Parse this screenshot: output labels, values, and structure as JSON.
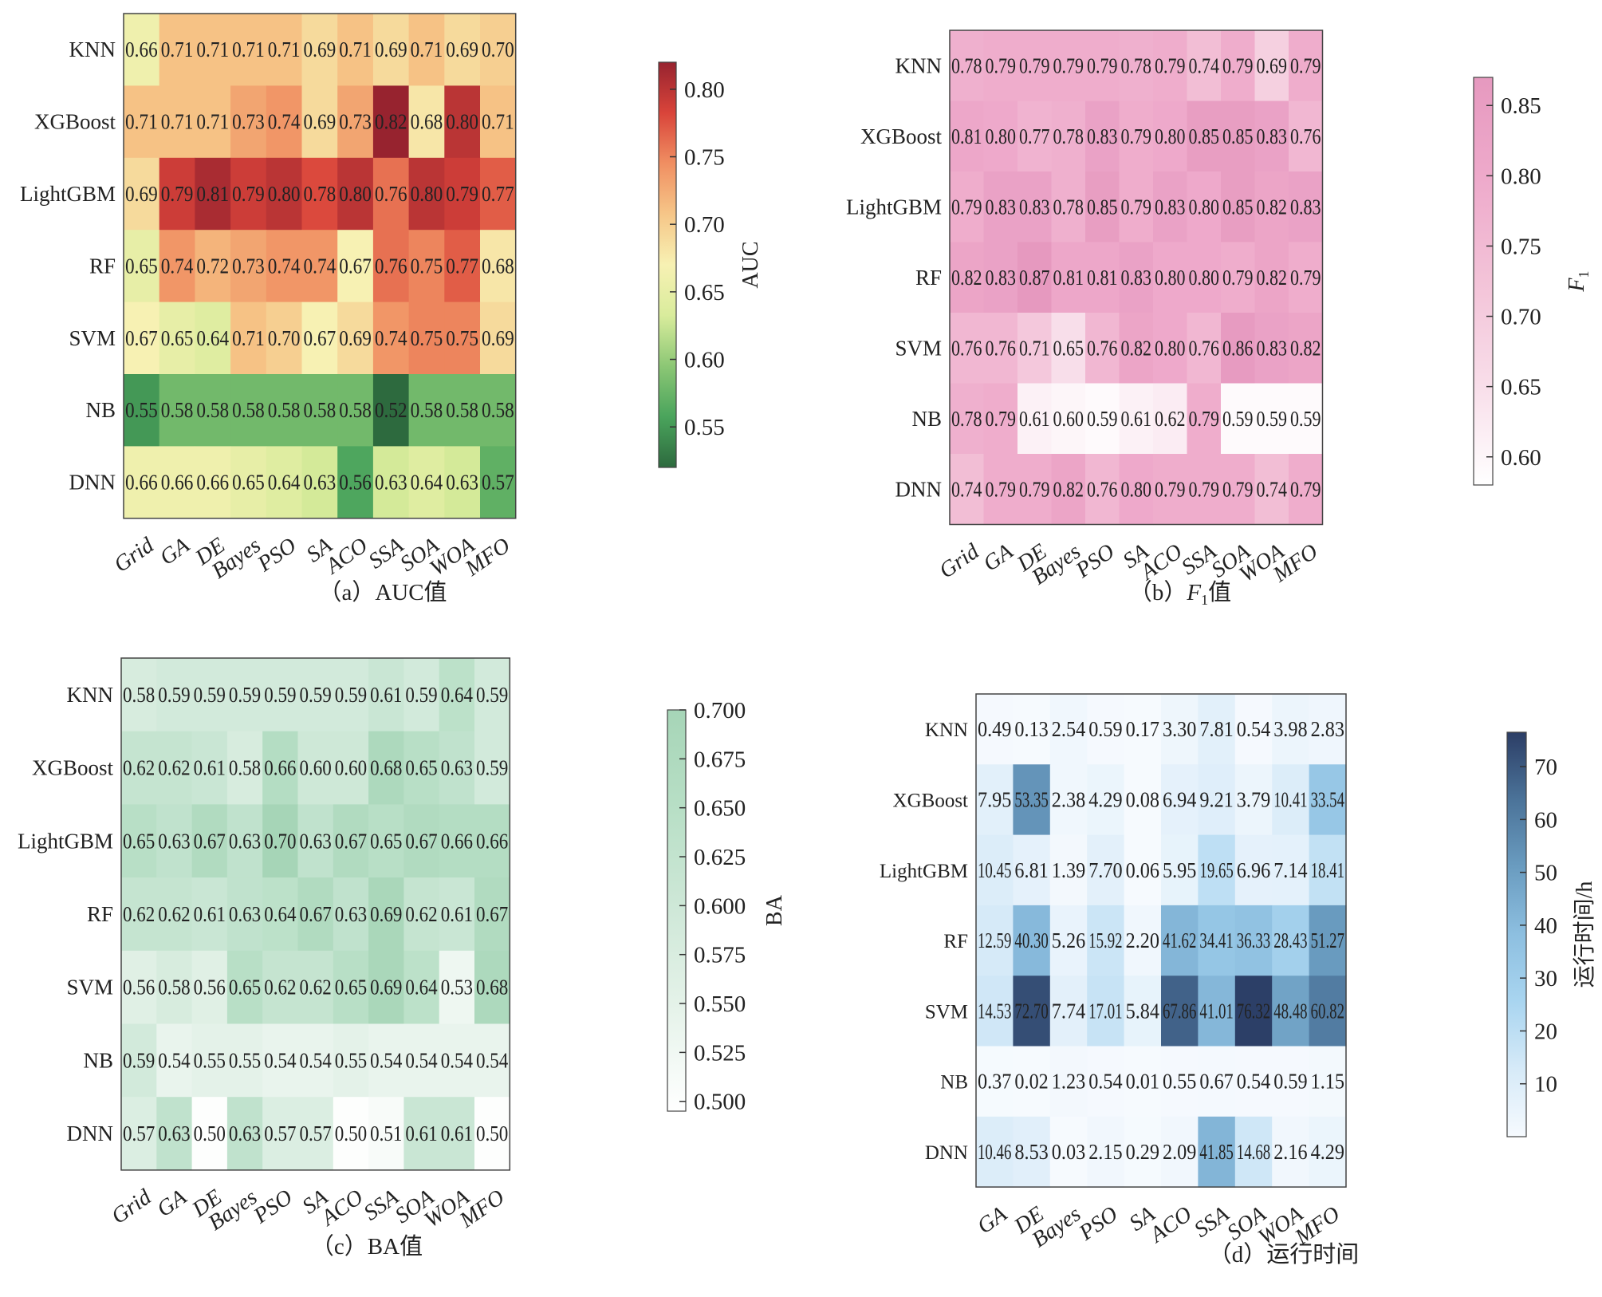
{
  "chart_data": [
    {
      "id": "a",
      "type": "heatmap",
      "caption_prefix": "（a）",
      "caption_main": "AUC值",
      "caption_sub": "",
      "caption_suffix": "",
      "colorbar_label": "AUC",
      "colorbar_label_sub": "",
      "colormap": [
        "#2d6a3e",
        "#4aa45c",
        "#8cc775",
        "#d9ec9c",
        "#f7f1b3",
        "#f6c688",
        "#f08f62",
        "#d9443a",
        "#97232f"
      ],
      "vmin": 0.52,
      "vmax": 0.82,
      "colorbar_ticks": [
        0.55,
        0.6,
        0.65,
        0.7,
        0.75,
        0.8
      ],
      "tick_format": 2,
      "rows": [
        "KNN",
        "XGBoost",
        "LightGBM",
        "RF",
        "SVM",
        "NB",
        "DNN"
      ],
      "columns": [
        "Grid",
        "GA",
        "DE",
        "Bayes",
        "PSO",
        "SA",
        "ACO",
        "SSA",
        "SOA",
        "WOA",
        "MFO"
      ],
      "values": [
        [
          0.66,
          0.71,
          0.71,
          0.71,
          0.71,
          0.69,
          0.71,
          0.69,
          0.71,
          0.69,
          0.7
        ],
        [
          0.71,
          0.71,
          0.71,
          0.73,
          0.74,
          0.69,
          0.73,
          0.82,
          0.68,
          0.8,
          0.71
        ],
        [
          0.69,
          0.79,
          0.81,
          0.79,
          0.8,
          0.78,
          0.8,
          0.76,
          0.8,
          0.79,
          0.77
        ],
        [
          0.65,
          0.74,
          0.72,
          0.73,
          0.74,
          0.74,
          0.67,
          0.76,
          0.75,
          0.77,
          0.68
        ],
        [
          0.67,
          0.65,
          0.64,
          0.71,
          0.7,
          0.67,
          0.69,
          0.74,
          0.75,
          0.75,
          0.69
        ],
        [
          0.55,
          0.58,
          0.58,
          0.58,
          0.58,
          0.58,
          0.58,
          0.52,
          0.58,
          0.58,
          0.58
        ],
        [
          0.66,
          0.66,
          0.66,
          0.65,
          0.64,
          0.63,
          0.56,
          0.63,
          0.64,
          0.63,
          0.57
        ]
      ],
      "labels": [
        [
          "0.66",
          "0.71",
          "0.71",
          "0.71",
          "0.71",
          "0.69",
          "0.71",
          "0.69",
          "0.71",
          "0.69",
          "0.70"
        ],
        [
          "0.71",
          "0.71",
          "0.71",
          "0.73",
          "0.74",
          "0.69",
          "0.73",
          "0.82",
          "0.68",
          "0.80",
          "0.71"
        ],
        [
          "0.69",
          "0.79",
          "0.81",
          "0.79",
          "0.80",
          "0.78",
          "0.80",
          "0.76",
          "0.80",
          "0.79",
          "0.77"
        ],
        [
          "0.65",
          "0.74",
          "0.72",
          "0.73",
          "0.74",
          "0.74",
          "0.67",
          "0.76",
          "0.75",
          "0.77",
          "0.68"
        ],
        [
          "0.67",
          "0.65",
          "0.64",
          "0.71",
          "0.70",
          "0.67",
          "0.69",
          "0.74",
          "0.75",
          "0.75",
          "0.69"
        ],
        [
          "0.55",
          "0.58",
          "0.58",
          "0.58",
          "0.58",
          "0.58",
          "0.58",
          "0.52",
          "0.58",
          "0.58",
          "0.58"
        ],
        [
          "0.66",
          "0.66",
          "0.66",
          "0.65",
          "0.64",
          "0.63",
          "0.56",
          "0.63",
          "0.64",
          "0.63",
          "0.57"
        ]
      ]
    },
    {
      "id": "b",
      "type": "heatmap",
      "caption_prefix": "（b）",
      "caption_main": "F",
      "caption_sub": "1",
      "caption_suffix": "值",
      "colorbar_label": "F",
      "colorbar_label_sub": "1",
      "colormap": [
        "#ffffff",
        "#f8dde9",
        "#f3c3d8",
        "#eeaacb",
        "#e699bf"
      ],
      "vmin": 0.58,
      "vmax": 0.87,
      "colorbar_ticks": [
        0.6,
        0.65,
        0.7,
        0.75,
        0.8,
        0.85
      ],
      "tick_format": 2,
      "rows": [
        "KNN",
        "XGBoost",
        "LightGBM",
        "RF",
        "SVM",
        "NB",
        "DNN"
      ],
      "columns": [
        "Grid",
        "GA",
        "DE",
        "Bayes",
        "PSO",
        "SA",
        "ACO",
        "SSA",
        "SOA",
        "WOA",
        "MFO"
      ],
      "values": [
        [
          0.78,
          0.79,
          0.79,
          0.79,
          0.79,
          0.78,
          0.79,
          0.74,
          0.79,
          0.69,
          0.79
        ],
        [
          0.81,
          0.8,
          0.77,
          0.78,
          0.83,
          0.79,
          0.8,
          0.85,
          0.85,
          0.83,
          0.76
        ],
        [
          0.79,
          0.83,
          0.83,
          0.78,
          0.85,
          0.79,
          0.83,
          0.8,
          0.85,
          0.82,
          0.83
        ],
        [
          0.82,
          0.83,
          0.87,
          0.81,
          0.81,
          0.83,
          0.8,
          0.8,
          0.79,
          0.82,
          0.79
        ],
        [
          0.76,
          0.76,
          0.71,
          0.65,
          0.76,
          0.82,
          0.8,
          0.76,
          0.86,
          0.83,
          0.82
        ],
        [
          0.78,
          0.79,
          0.61,
          0.6,
          0.59,
          0.61,
          0.62,
          0.79,
          0.59,
          0.59,
          0.59
        ],
        [
          0.74,
          0.79,
          0.79,
          0.82,
          0.76,
          0.8,
          0.79,
          0.79,
          0.79,
          0.74,
          0.79
        ]
      ],
      "labels": [
        [
          "0.78",
          "0.79",
          "0.79",
          "0.79",
          "0.79",
          "0.78",
          "0.79",
          "0.74",
          "0.79",
          "0.69",
          "0.79"
        ],
        [
          "0.81",
          "0.80",
          "0.77",
          "0.78",
          "0.83",
          "0.79",
          "0.80",
          "0.85",
          "0.85",
          "0.83",
          "0.76"
        ],
        [
          "0.79",
          "0.83",
          "0.83",
          "0.78",
          "0.85",
          "0.79",
          "0.83",
          "0.80",
          "0.85",
          "0.82",
          "0.83"
        ],
        [
          "0.82",
          "0.83",
          "0.87",
          "0.81",
          "0.81",
          "0.83",
          "0.80",
          "0.80",
          "0.79",
          "0.82",
          "0.79"
        ],
        [
          "0.76",
          "0.76",
          "0.71",
          "0.65",
          "0.76",
          "0.82",
          "0.80",
          "0.76",
          "0.86",
          "0.83",
          "0.82"
        ],
        [
          "0.78",
          "0.79",
          "0.61",
          "0.60",
          "0.59",
          "0.61",
          "0.62",
          "0.79",
          "0.59",
          "0.59",
          "0.59"
        ],
        [
          "0.74",
          "0.79",
          "0.79",
          "0.82",
          "0.76",
          "0.80",
          "0.79",
          "0.79",
          "0.79",
          "0.74",
          "0.79"
        ]
      ]
    },
    {
      "id": "c",
      "type": "heatmap",
      "caption_prefix": "（c）",
      "caption_main": "BA值",
      "caption_sub": "",
      "caption_suffix": "",
      "colorbar_label": "BA",
      "colorbar_label_sub": "",
      "colormap": [
        "#ffffff",
        "#e6f3ea",
        "#cfe8d8",
        "#b8dfc6",
        "#a6d5b7"
      ],
      "vmin": 0.495,
      "vmax": 0.7,
      "colorbar_ticks": [
        0.5,
        0.525,
        0.55,
        0.575,
        0.6,
        0.625,
        0.65,
        0.675,
        0.7
      ],
      "tick_format": 3,
      "rows": [
        "KNN",
        "XGBoost",
        "LightGBM",
        "RF",
        "SVM",
        "NB",
        "DNN"
      ],
      "columns": [
        "Grid",
        "GA",
        "DE",
        "Bayes",
        "PSO",
        "SA",
        "ACO",
        "SSA",
        "SOA",
        "WOA",
        "MFO"
      ],
      "values": [
        [
          0.58,
          0.59,
          0.59,
          0.59,
          0.59,
          0.59,
          0.59,
          0.61,
          0.59,
          0.64,
          0.59
        ],
        [
          0.62,
          0.62,
          0.61,
          0.58,
          0.66,
          0.6,
          0.6,
          0.68,
          0.65,
          0.63,
          0.59
        ],
        [
          0.65,
          0.63,
          0.67,
          0.63,
          0.7,
          0.63,
          0.67,
          0.65,
          0.67,
          0.66,
          0.66
        ],
        [
          0.62,
          0.62,
          0.61,
          0.63,
          0.64,
          0.67,
          0.63,
          0.69,
          0.62,
          0.61,
          0.67
        ],
        [
          0.56,
          0.58,
          0.56,
          0.65,
          0.62,
          0.62,
          0.65,
          0.69,
          0.64,
          0.53,
          0.68
        ],
        [
          0.59,
          0.54,
          0.55,
          0.55,
          0.54,
          0.54,
          0.55,
          0.54,
          0.54,
          0.54,
          0.54
        ],
        [
          0.57,
          0.63,
          0.5,
          0.63,
          0.57,
          0.57,
          0.5,
          0.51,
          0.61,
          0.61,
          0.5
        ]
      ],
      "labels": [
        [
          "0.58",
          "0.59",
          "0.59",
          "0.59",
          "0.59",
          "0.59",
          "0.59",
          "0.61",
          "0.59",
          "0.64",
          "0.59"
        ],
        [
          "0.62",
          "0.62",
          "0.61",
          "0.58",
          "0.66",
          "0.60",
          "0.60",
          "0.68",
          "0.65",
          "0.63",
          "0.59"
        ],
        [
          "0.65",
          "0.63",
          "0.67",
          "0.63",
          "0.70",
          "0.63",
          "0.67",
          "0.65",
          "0.67",
          "0.66",
          "0.66"
        ],
        [
          "0.62",
          "0.62",
          "0.61",
          "0.63",
          "0.64",
          "0.67",
          "0.63",
          "0.69",
          "0.62",
          "0.61",
          "0.67"
        ],
        [
          "0.56",
          "0.58",
          "0.56",
          "0.65",
          "0.62",
          "0.62",
          "0.65",
          "0.69",
          "0.64",
          "0.53",
          "0.68"
        ],
        [
          "0.59",
          "0.54",
          "0.55",
          "0.55",
          "0.54",
          "0.54",
          "0.55",
          "0.54",
          "0.54",
          "0.54",
          "0.54"
        ],
        [
          "0.57",
          "0.63",
          "0.50",
          "0.63",
          "0.57",
          "0.57",
          "0.50",
          "0.51",
          "0.61",
          "0.61",
          "0.50"
        ]
      ]
    },
    {
      "id": "d",
      "type": "heatmap",
      "caption_prefix": "（d）",
      "caption_main": "运行时间",
      "caption_sub": "",
      "caption_suffix": "",
      "colorbar_label": "运行时间/h",
      "colorbar_label_sub": "",
      "colormap": [
        "#f6fafe",
        "#d6eaf8",
        "#a9d5f0",
        "#8dbfe0",
        "#6a9cc0",
        "#4b7399",
        "#2c3e66"
      ],
      "vmin": 0.0,
      "vmax": 76.5,
      "colorbar_ticks": [
        10,
        20,
        30,
        40,
        50,
        60,
        70
      ],
      "tick_format": 0,
      "rows": [
        "KNN",
        "XGBoost",
        "LightGBM",
        "RF",
        "SVM",
        "NB",
        "DNN"
      ],
      "columns": [
        "GA",
        "DE",
        "Bayes",
        "PSO",
        "SA",
        "ACO",
        "SSA",
        "SOA",
        "WOA",
        "MFO"
      ],
      "values": [
        [
          0.49,
          0.13,
          2.54,
          0.59,
          0.17,
          3.3,
          7.81,
          0.54,
          3.98,
          2.83
        ],
        [
          7.95,
          53.35,
          2.38,
          4.29,
          0.08,
          6.94,
          9.21,
          3.79,
          10.41,
          33.54
        ],
        [
          10.45,
          6.81,
          1.39,
          7.7,
          0.06,
          5.95,
          19.65,
          6.96,
          7.14,
          18.41
        ],
        [
          12.59,
          40.3,
          5.26,
          15.92,
          2.2,
          41.62,
          34.41,
          36.33,
          28.43,
          51.27
        ],
        [
          14.53,
          72.7,
          7.74,
          17.01,
          5.84,
          67.86,
          41.01,
          76.32,
          48.48,
          60.82
        ],
        [
          0.37,
          0.02,
          1.23,
          0.54,
          0.01,
          0.55,
          0.67,
          0.54,
          0.59,
          1.15
        ],
        [
          10.46,
          8.53,
          0.03,
          2.15,
          0.29,
          2.09,
          41.85,
          14.68,
          2.16,
          4.29
        ]
      ],
      "labels": [
        [
          "0.49",
          "0.13",
          "2.54",
          "0.59",
          "0.17",
          "3.30",
          "7.81",
          "0.54",
          "3.98",
          "2.83"
        ],
        [
          "7.95",
          "53.35",
          "2.38",
          "4.29",
          "0.08",
          "6.94",
          "9.21",
          "3.79",
          "10.41",
          "33.54"
        ],
        [
          "10.45",
          "6.81",
          "1.39",
          "7.70",
          "0.06",
          "5.95",
          "19.65",
          "6.96",
          "7.14",
          "18.41"
        ],
        [
          "12.59",
          "40.30",
          "5.26",
          "15.92",
          "2.20",
          "41.62",
          "34.41",
          "36.33",
          "28.43",
          "51.27"
        ],
        [
          "14.53",
          "72.70",
          "7.74",
          "17.01",
          "5.84",
          "67.86",
          "41.01",
          "76.32",
          "48.48",
          "60.82"
        ],
        [
          "0.37",
          "0.02",
          "1.23",
          "0.54",
          "0.01",
          "0.55",
          "0.67",
          "0.54",
          "0.59",
          "1.15"
        ],
        [
          "10.46",
          "8.53",
          "0.03",
          "2.15",
          "0.29",
          "2.09",
          "41.85",
          "14.68",
          "2.16",
          "4.29"
        ]
      ]
    }
  ]
}
